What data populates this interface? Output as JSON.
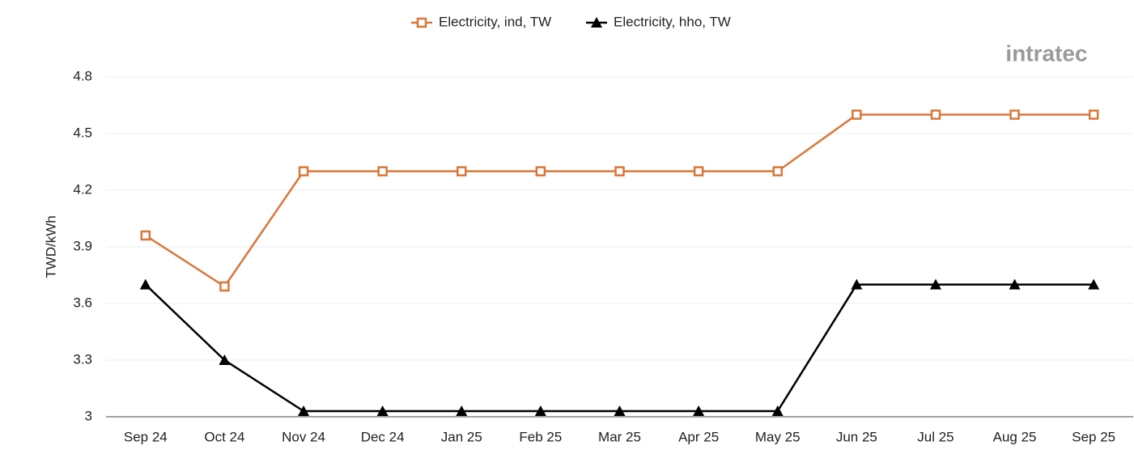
{
  "chart_data": {
    "type": "line",
    "watermark": "intratec",
    "y_label": "TWD/kWh",
    "categories": [
      "Sep 24",
      "Oct 24",
      "Nov 24",
      "Dec 24",
      "Jan 25",
      "Feb 25",
      "Mar 25",
      "Apr 25",
      "May 25",
      "Jun 25",
      "Jul 25",
      "Aug 25",
      "Sep 25"
    ],
    "series": [
      {
        "name": "Electricity, ind, TW",
        "color": "#d9773a",
        "marker": "square-open",
        "values": [
          3.96,
          3.69,
          4.3,
          4.3,
          4.3,
          4.3,
          4.3,
          4.3,
          4.3,
          4.6,
          4.6,
          4.6,
          4.6
        ]
      },
      {
        "name": "Electricity, hho, TW",
        "color": "#000000",
        "marker": "triangle",
        "values": [
          3.7,
          3.3,
          3.03,
          3.03,
          3.03,
          3.03,
          3.03,
          3.03,
          3.03,
          3.7,
          3.7,
          3.7,
          3.7
        ]
      }
    ],
    "ylim": [
      3,
      4.8
    ],
    "yticks": [
      3,
      3.3,
      3.6,
      3.9,
      4.2,
      4.5,
      4.8
    ],
    "grid": true,
    "legend": "top"
  }
}
